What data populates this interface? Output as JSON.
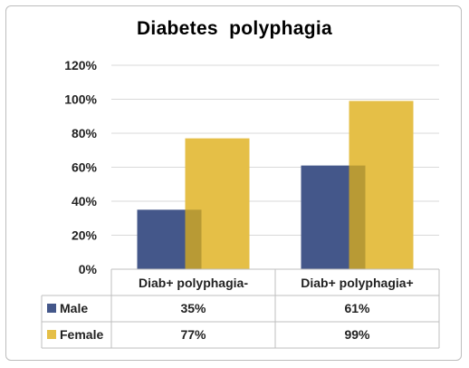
{
  "chart_data": {
    "type": "bar",
    "title": "Diabetes  polyphagia",
    "categories": [
      "Diab+ polyphagia-",
      "Diab+ polyphagia+"
    ],
    "series": [
      {
        "name": "Male",
        "values": [
          35,
          61
        ],
        "labels": [
          "35%",
          "61%"
        ],
        "color": "#44578a"
      },
      {
        "name": "Female",
        "values": [
          77,
          99
        ],
        "labels": [
          "77%",
          "99%"
        ],
        "color": "#e5bf47"
      }
    ],
    "overlap_shade": "#b89a35",
    "ylim": [
      0,
      120
    ],
    "yticks": [
      "0%",
      "20%",
      "40%",
      "60%",
      "80%",
      "100%",
      "120%"
    ],
    "grid": true,
    "legend": "data table below chart"
  }
}
